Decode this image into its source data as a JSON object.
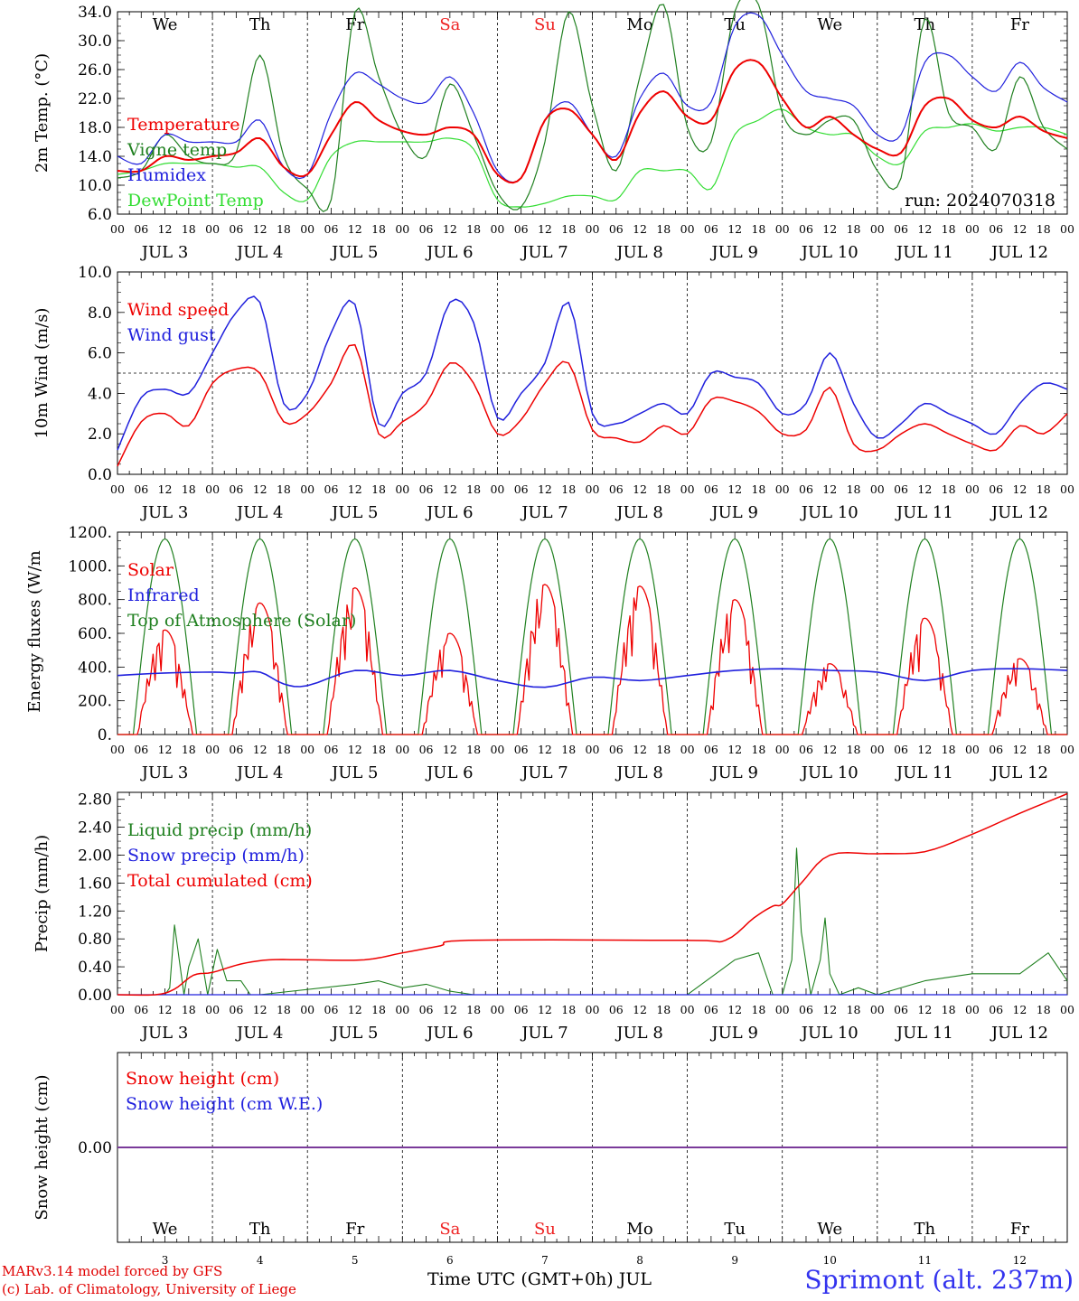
{
  "chart_data": [
    {
      "type": "line",
      "ylabel": "2m Temp. (°C)",
      "ylim": [
        6,
        34
      ],
      "yticks": [
        "6.0",
        "10.0",
        "14.0",
        "18.0",
        "22.0",
        "26.0",
        "30.0",
        "34.0"
      ],
      "run_label": "run: 2024070318",
      "day_labels": [
        "We",
        "Th",
        "Fr",
        "Sa",
        "Su",
        "Mo",
        "Tu",
        "We",
        "Th",
        "Fr"
      ],
      "date_labels": [
        "JUL 3",
        "JUL 4",
        "JUL 5",
        "JUL 6",
        "JUL 7",
        "JUL 8",
        "JUL 9",
        "JUL 10",
        "JUL 11",
        "JUL 12"
      ],
      "hour_ticks": [
        "00",
        "06",
        "12",
        "18"
      ],
      "x_days": [
        0,
        0.25,
        0.5,
        0.75,
        1,
        1.25,
        1.5,
        1.75,
        2,
        2.25,
        2.5,
        2.75,
        3,
        3.25,
        3.5,
        3.75,
        4,
        4.25,
        4.5,
        4.75,
        5,
        5.25,
        5.5,
        5.75,
        6,
        6.25,
        6.5,
        6.75,
        7,
        7.25,
        7.5,
        7.75,
        8,
        8.25,
        8.5,
        8.75,
        9,
        9.25,
        9.5,
        9.75,
        10
      ],
      "series": [
        {
          "name": "Temperature",
          "color": "#ee0000",
          "values": [
            12,
            12,
            14,
            13.5,
            14,
            14.5,
            16.5,
            12.5,
            11.5,
            17,
            21.5,
            19,
            17.5,
            17,
            18,
            17,
            11.5,
            11,
            19,
            20.5,
            17,
            13.5,
            20,
            23,
            19.5,
            19,
            26,
            27,
            22,
            18,
            19.5,
            17,
            15,
            14.5,
            21,
            22,
            19,
            18,
            19.5,
            17.5,
            16.5
          ]
        },
        {
          "name": "Vigne temp",
          "color": "#208020",
          "values": [
            11,
            12,
            17,
            14,
            13,
            14.5,
            28,
            14,
            9.5,
            8,
            34,
            25,
            17,
            14,
            24,
            17,
            9,
            7,
            16,
            34,
            21,
            12,
            25,
            35,
            18,
            16,
            34,
            35,
            20,
            17,
            19,
            19,
            12,
            11,
            33,
            20,
            18,
            15,
            25,
            18,
            15
          ]
        },
        {
          "name": "Humidex",
          "color": "#2020dd",
          "values": [
            14,
            13,
            17,
            16,
            16,
            16,
            19,
            12.5,
            11.5,
            20,
            25.5,
            24,
            22,
            21.5,
            25,
            20,
            12,
            11,
            19,
            21.5,
            17,
            14,
            22,
            25.5,
            21,
            21.5,
            32,
            33.5,
            28,
            23,
            22,
            21,
            17,
            17,
            27,
            28,
            25,
            23,
            27,
            23.5,
            21.5
          ]
        },
        {
          "name": "DewPoint Temp",
          "color": "#33dd33",
          "values": [
            11.5,
            12,
            13,
            13,
            13,
            12.5,
            12.5,
            9,
            8,
            14,
            16,
            16,
            16,
            16,
            16.5,
            15,
            8,
            7,
            7.5,
            8.5,
            8.5,
            8,
            12,
            12,
            12,
            9.5,
            17,
            19,
            20.5,
            18,
            17,
            17,
            14,
            13,
            17.5,
            18,
            18.5,
            17.5,
            18,
            18,
            17
          ]
        }
      ]
    },
    {
      "type": "line",
      "ylabel": "10m Wind (m/s)",
      "ylim": [
        0,
        10
      ],
      "yticks": [
        "0.0",
        "2.0",
        "4.0",
        "6.0",
        "8.0",
        "10.0"
      ],
      "reference_line": 5,
      "x_days": [
        0,
        0.25,
        0.5,
        0.75,
        1,
        1.25,
        1.5,
        1.75,
        2,
        2.25,
        2.5,
        2.75,
        3,
        3.25,
        3.5,
        3.75,
        4,
        4.25,
        4.5,
        4.75,
        5,
        5.25,
        5.5,
        5.75,
        6,
        6.25,
        6.5,
        6.75,
        7,
        7.25,
        7.5,
        7.75,
        8,
        8.25,
        8.5,
        8.75,
        9,
        9.25,
        9.5,
        9.75,
        10
      ],
      "series": [
        {
          "name": "Wind speed",
          "color": "#ee0000",
          "values": [
            0.4,
            2.6,
            3.0,
            2.4,
            4.5,
            5.2,
            5.0,
            2.6,
            3.0,
            4.5,
            6.4,
            2.0,
            2.6,
            3.5,
            5.5,
            4.5,
            2.0,
            2.7,
            4.5,
            5.5,
            2.2,
            1.8,
            1.6,
            2.4,
            2.0,
            3.7,
            3.6,
            3.1,
            2.0,
            2.2,
            4.3,
            1.5,
            1.2,
            2.0,
            2.5,
            2.0,
            1.5,
            1.2,
            2.4,
            2.0,
            3.0
          ]
        },
        {
          "name": "Wind gust",
          "color": "#2020dd",
          "values": [
            1.2,
            3.8,
            4.2,
            4.0,
            6.0,
            8.0,
            8.5,
            3.5,
            4.0,
            7.0,
            8.4,
            2.5,
            4.0,
            5.0,
            8.5,
            7.5,
            2.8,
            4.0,
            5.5,
            8.5,
            3.0,
            2.5,
            3.0,
            3.5,
            3.0,
            5.0,
            4.8,
            4.5,
            3.0,
            3.5,
            6.0,
            3.5,
            1.8,
            2.5,
            3.5,
            3.0,
            2.5,
            2.0,
            3.5,
            4.5,
            4.2
          ]
        }
      ]
    },
    {
      "type": "line",
      "ylabel": "Energy fluxes (W/m²)",
      "ylim": [
        0,
        1200
      ],
      "yticks": [
        "0.",
        "200.",
        "400.",
        "600.",
        "800.",
        "1000.",
        "1200."
      ],
      "series": [
        {
          "name": "Solar",
          "color": "#ee0000",
          "daily_peak": [
            620,
            780,
            870,
            600,
            890,
            880,
            800,
            420,
            690,
            450
          ]
        },
        {
          "name": "Infrared",
          "color": "#2020dd",
          "x_days": [
            0,
            0.5,
            1,
            1.25,
            1.5,
            1.75,
            2,
            2.5,
            3,
            3.5,
            4,
            4.5,
            5,
            5.5,
            6,
            6.5,
            7,
            7.5,
            8,
            8.5,
            9,
            9.5,
            10
          ],
          "values": [
            350,
            365,
            370,
            365,
            370,
            300,
            290,
            380,
            350,
            380,
            320,
            280,
            340,
            320,
            350,
            380,
            390,
            380,
            370,
            320,
            380,
            390,
            380
          ]
        },
        {
          "name": "Top of Atmosphere (Solar)",
          "color": "#208020",
          "peak": 1160,
          "sunrise_h": 4,
          "sunset_h": 20
        }
      ]
    },
    {
      "type": "line",
      "ylabel": "Precip (mm/h)",
      "ylim": [
        0,
        2.9
      ],
      "yticks": [
        "0.00",
        "0.40",
        "0.80",
        "1.20",
        "1.60",
        "2.00",
        "2.40",
        "2.80"
      ],
      "series": [
        {
          "name": "Liquid precip (mm/h)",
          "color": "#208020",
          "x_days": [
            0,
            0.5,
            0.55,
            0.6,
            0.7,
            0.75,
            0.85,
            0.95,
            1.05,
            1.15,
            1.3,
            1.4,
            1.5,
            2.5,
            2.75,
            3,
            3.25,
            3.5,
            3.75,
            4,
            6,
            6.5,
            6.75,
            6.9,
            7,
            7.1,
            7.15,
            7.2,
            7.3,
            7.4,
            7.45,
            7.5,
            7.6,
            7.8,
            8,
            8.5,
            9,
            9.5,
            9.8,
            10
          ],
          "values": [
            0,
            0,
            0.1,
            1.0,
            0,
            0.4,
            0.8,
            0,
            0.65,
            0.2,
            0.2,
            0,
            0,
            0.15,
            0.2,
            0.1,
            0.15,
            0.05,
            0,
            0,
            0,
            0.5,
            0.6,
            0,
            0,
            0.5,
            2.1,
            0.9,
            0,
            0.5,
            1.1,
            0.3,
            0,
            0.1,
            0,
            0.2,
            0.3,
            0.3,
            0.6,
            0.2
          ]
        },
        {
          "name": "Snow precip (mm/h)",
          "color": "#2020dd",
          "values": [
            0
          ]
        },
        {
          "name": "Total cumulated (cm)",
          "color": "#ee0000",
          "x_days": [
            0,
            0.4,
            0.6,
            0.8,
            1.0,
            1.3,
            1.6,
            2.0,
            2.6,
            3.0,
            3.4,
            3.7,
            6.0,
            6.4,
            6.7,
            6.9,
            7.0,
            7.2,
            7.5,
            8.0,
            8.5,
            9.0,
            9.5,
            10
          ],
          "values": [
            0,
            0,
            0.08,
            0.28,
            0.32,
            0.44,
            0.5,
            0.5,
            0.5,
            0.6,
            0.7,
            0.78,
            0.78,
            0.78,
            1.1,
            1.27,
            1.3,
            1.6,
            2.0,
            2.02,
            2.05,
            2.3,
            2.6,
            2.88
          ]
        }
      ]
    },
    {
      "type": "line",
      "ylabel": "Snow height (cm)",
      "yticks": [
        "0.00"
      ],
      "bottom_day_labels": [
        "We",
        "Th",
        "Fr",
        "Sa",
        "Su",
        "Mo",
        "Tu",
        "We",
        "Th",
        "Fr"
      ],
      "bottom_date_numbers": [
        "3",
        "4",
        "5",
        "6",
        "7",
        "8",
        "9",
        "10",
        "11",
        "12"
      ],
      "series": [
        {
          "name": "Snow height (cm)",
          "color": "#ee0000",
          "values": [
            0
          ]
        },
        {
          "name": "Snow height (cm W.E.)",
          "color": "#2020dd",
          "values": [
            0
          ]
        }
      ]
    }
  ],
  "weekend_day_color": "#ee2020",
  "weekday_color": "#000000",
  "footer": {
    "credit_line_1": "MARv3.14 model forced by GFS",
    "credit_line_2": "(c) Lab. of Climatology, University of Liege",
    "x_axis_title": "Time UTC (GMT+0h) JUL",
    "station": "Sprimont (alt. 237m)"
  }
}
